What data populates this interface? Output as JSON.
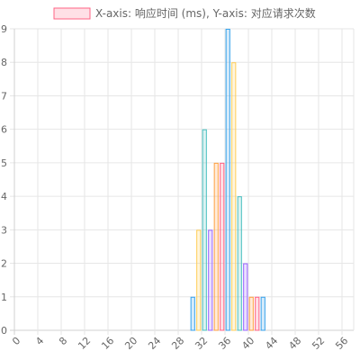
{
  "chart_data": {
    "type": "bar",
    "legend_label": "X-axis: 响应时间 (ms), Y-axis: 对应请求次数",
    "legend_position": "top",
    "grid": true,
    "categories": [
      0,
      1,
      2,
      3,
      4,
      5,
      6,
      7,
      8,
      9,
      10,
      11,
      12,
      13,
      14,
      15,
      16,
      17,
      18,
      19,
      20,
      21,
      22,
      23,
      24,
      25,
      26,
      27,
      28,
      29,
      30,
      31,
      32,
      33,
      34,
      35,
      36,
      37,
      38,
      39,
      40,
      41,
      42,
      43,
      44,
      45,
      46,
      47,
      48,
      49,
      50,
      51,
      52,
      53,
      54,
      55,
      56,
      57
    ],
    "x_tick_labels": [
      "0",
      "4",
      "8",
      "12",
      "16",
      "20",
      "24",
      "28",
      "32",
      "36",
      "40",
      "44",
      "48",
      "52",
      "56"
    ],
    "values": [
      0,
      0,
      0,
      0,
      0,
      0,
      0,
      0,
      0,
      0,
      0,
      0,
      0,
      0,
      0,
      0,
      0,
      0,
      0,
      0,
      0,
      0,
      0,
      0,
      0,
      0,
      0,
      0,
      0,
      0,
      1,
      3,
      6,
      3,
      5,
      5,
      9,
      8,
      4,
      2,
      1,
      1,
      1,
      0,
      0,
      0,
      0,
      0,
      0,
      0,
      0,
      0,
      0,
      0,
      0,
      0,
      0,
      0
    ],
    "ylim": [
      0,
      9
    ],
    "y_ticks": [
      0,
      1,
      2,
      3,
      4,
      5,
      6,
      7,
      8,
      9
    ],
    "palette": [
      {
        "border": "#36a2eb",
        "fill": "rgba(54,162,235,0.2)"
      },
      {
        "border": "#ffcd56",
        "fill": "rgba(255,205,86,0.2)"
      },
      {
        "border": "#4bc0c0",
        "fill": "rgba(75,192,192,0.2)"
      },
      {
        "border": "#9966ff",
        "fill": "rgba(153,102,255,0.2)"
      },
      {
        "border": "#ff9f40",
        "fill": "rgba(255,159,64,0.2)"
      },
      {
        "border": "#ff6384",
        "fill": "rgba(255,99,132,0.2)"
      }
    ],
    "legend_border": "#ff6384",
    "legend_fill": "rgba(255,99,132,0.2)",
    "grid_color": "#e6e6e6",
    "axis_color": "#d0d0d0"
  }
}
